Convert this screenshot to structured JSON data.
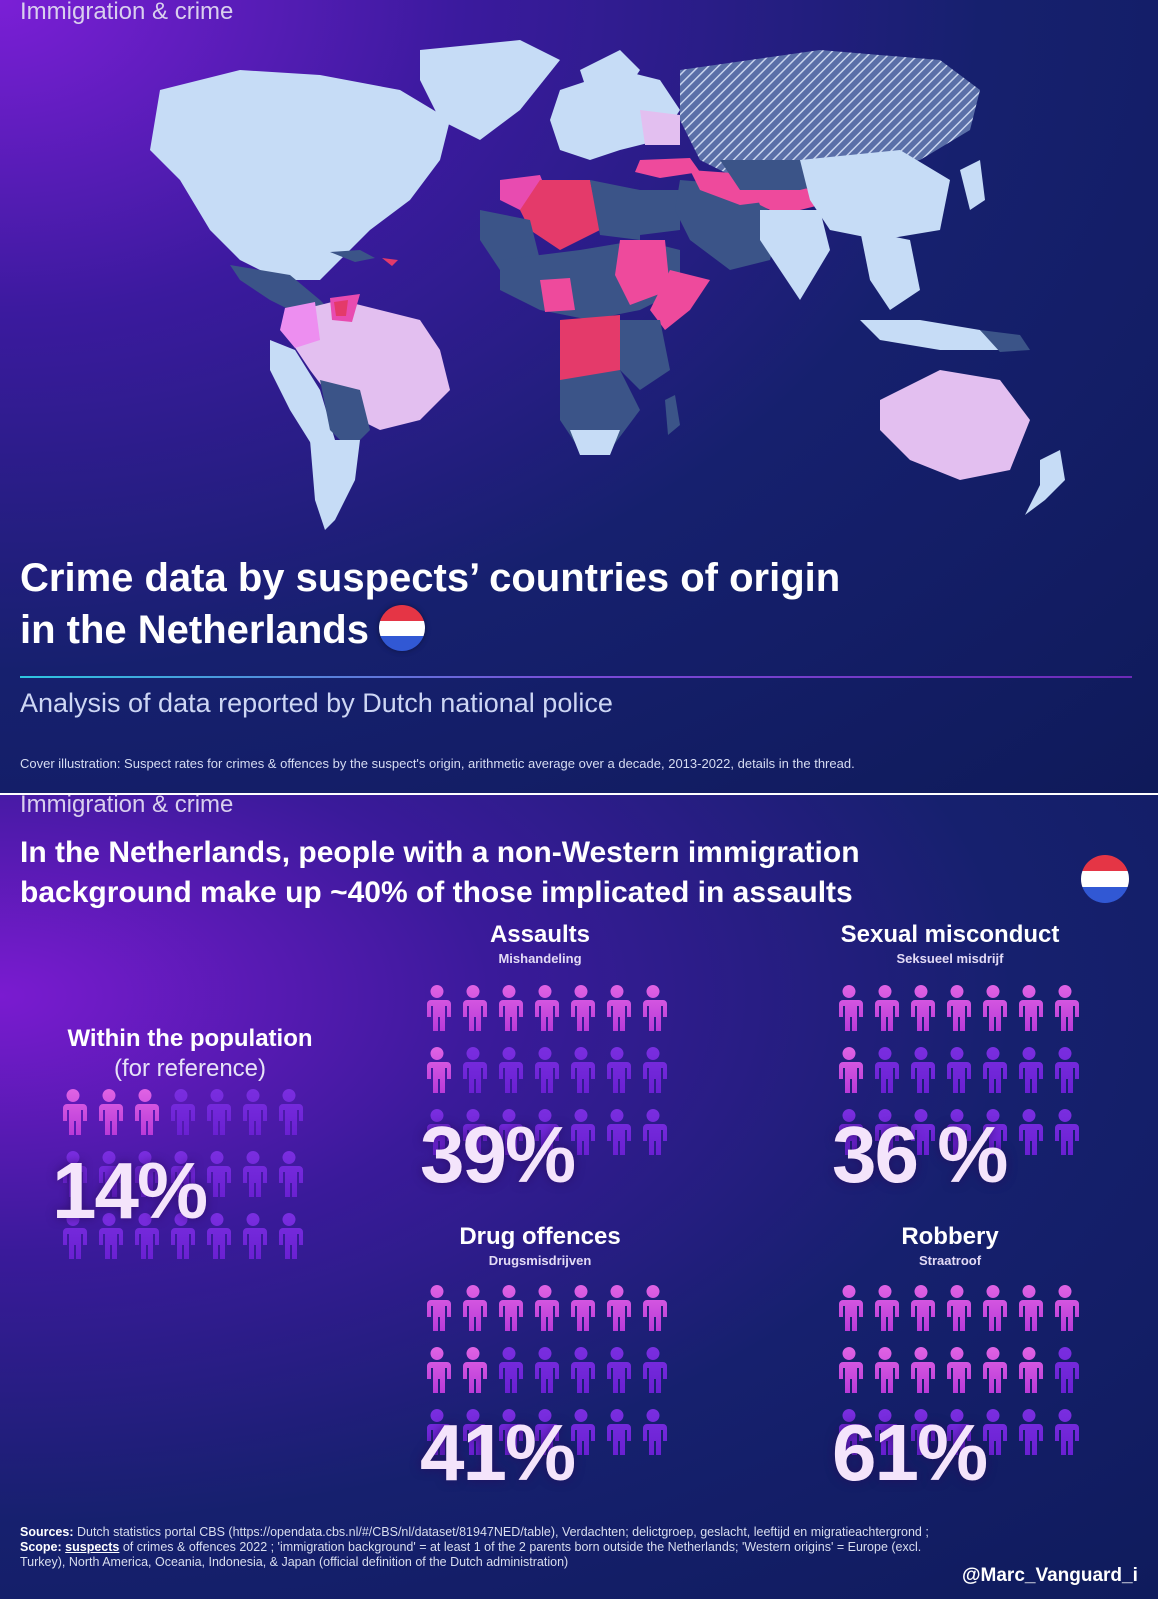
{
  "cover": {
    "kicker": "Immigration & crime",
    "title_line1": "Crime data by suspects’ countries of origin",
    "title_line2": "in the Netherlands",
    "subtitle": "Analysis of data reported by Dutch national police",
    "caption": "Cover illustration: Suspect rates for crimes & offences by the suspect's origin, arithmetic average over a decade, 2013-2022, details in the thread."
  },
  "colors": {
    "light_blue": "#c6dcf6",
    "slate": "#3b5488",
    "lavender": "#e3bff0",
    "pink": "#e84bb0",
    "magenta": "#ee4a9c",
    "red": "#e43a6a",
    "figure_pink": "#e063e4",
    "figure_violet": "#6a20d2"
  },
  "infographic": {
    "kicker": "Immigration & crime",
    "title_line1": "In the Netherlands, people with a non-Western immigration",
    "title_line2": "background make up ~40% of those implicated in assaults",
    "reference": {
      "name": "Within the population",
      "sub": "(for reference)",
      "percent_label": "14%",
      "fraction": 0.14
    },
    "categories": [
      {
        "name": "Assaults",
        "dutch": "Mishandeling",
        "percent_label": "39%",
        "fraction": 0.39
      },
      {
        "name": "Sexual misconduct",
        "dutch": "Seksueel misdrijf",
        "percent_label": "36 %",
        "fraction": 0.36
      },
      {
        "name": "Drug offences",
        "dutch": "Drugsmisdrijven",
        "percent_label": "41%",
        "fraction": 0.41
      },
      {
        "name": "Robbery",
        "dutch": "Straatroof",
        "percent_label": "61%",
        "fraction": 0.61
      }
    ],
    "sources": {
      "sources_label": "Sources:",
      "sources_text": " Dutch statistics portal CBS (https://opendata.cbs.nl/#/CBS/nl/dataset/81947NED/table), Verdachten; delictgroep, geslacht, leeftijd en migratieachtergrond ; ",
      "scope_label": "Scope:",
      "scope_underlined": "suspects",
      "scope_text": " of crimes & offences 2022 ; 'immigration background' = at least 1 of the 2 parents born outside the Netherlands; 'Western origins' = Europe (excl. Turkey), North America, Oceania, Indonesia, & Japan (official definition of the Dutch administration)"
    },
    "handle": "@Marc_Vanguard_i"
  }
}
